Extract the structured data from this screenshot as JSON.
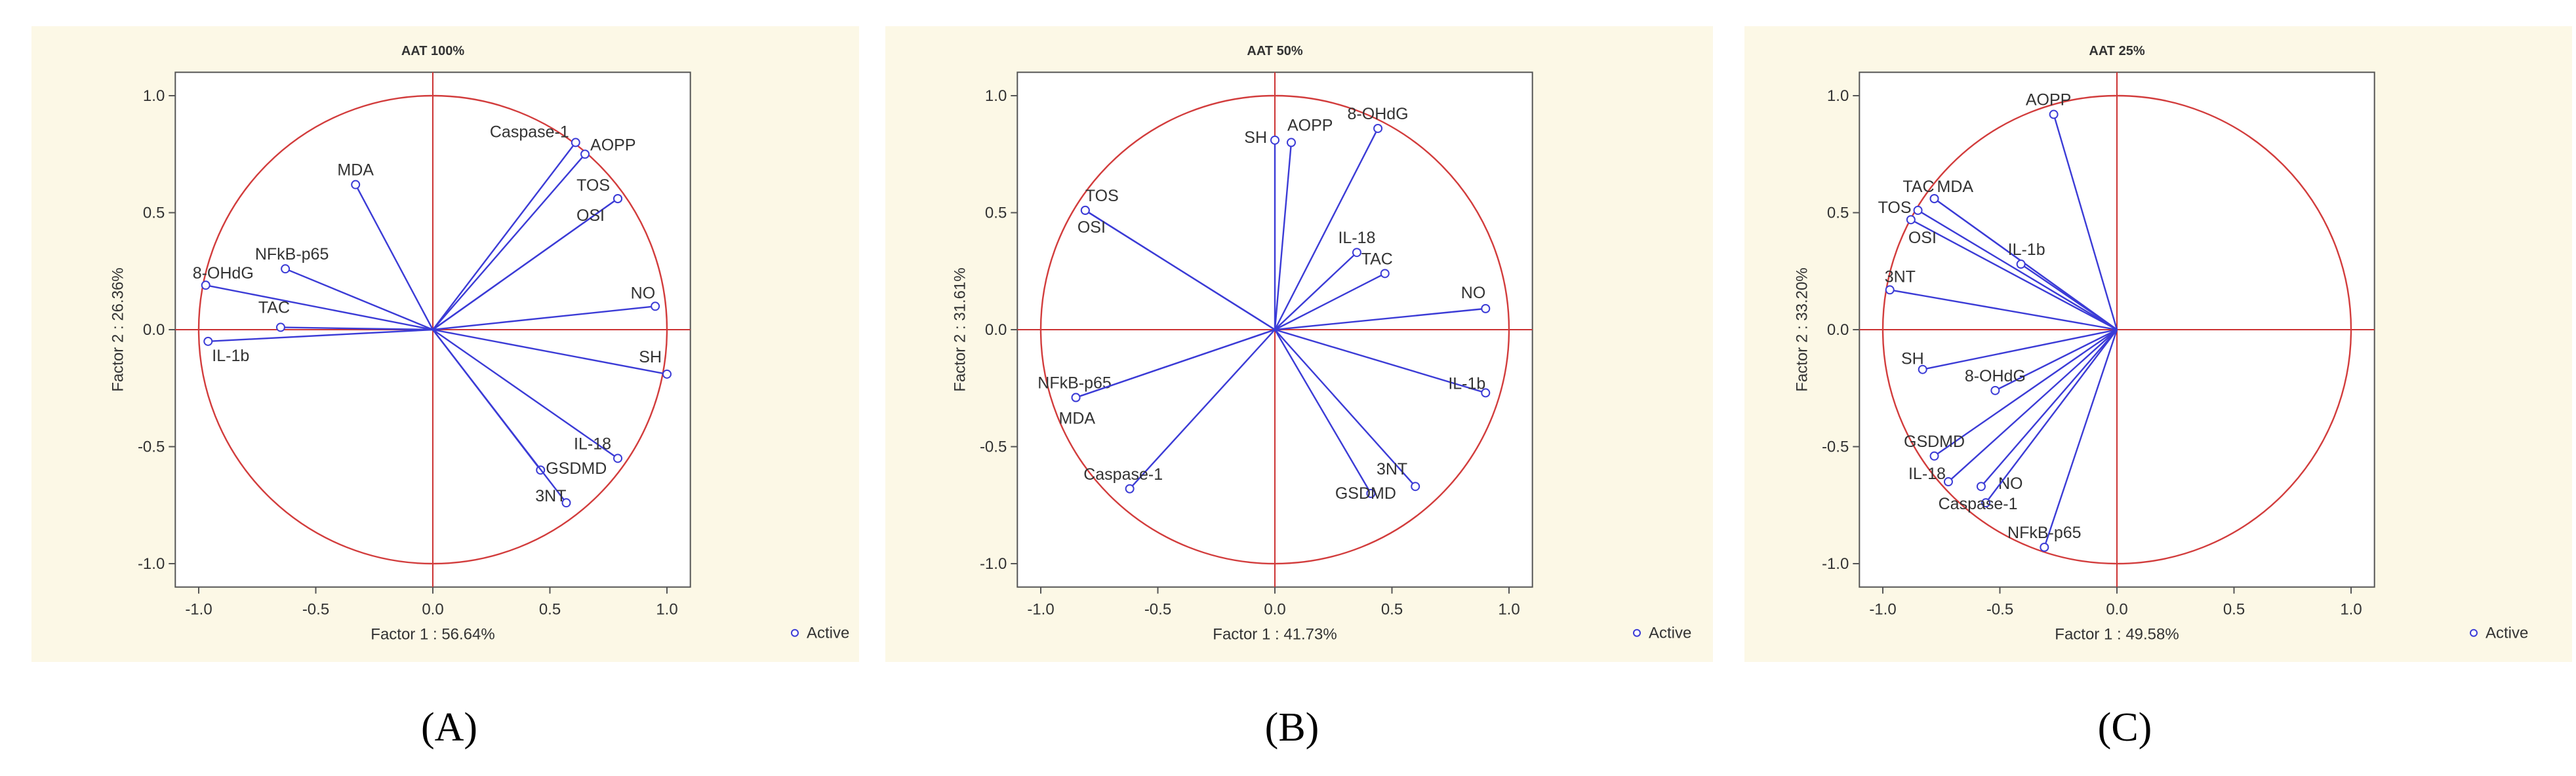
{
  "colors": {
    "vector": "#3b3bd6",
    "circle": "#d23c3c",
    "background": "#fcf8e6",
    "axis": "#cc3333"
  },
  "chart_data": [
    {
      "type": "scatter",
      "subtype": "pca-correlation-circle",
      "title": "AAT 100%",
      "xlabel": "Factor 1 : 56.64%",
      "ylabel": "Factor 2 : 26.36%",
      "xlim": [
        -1.1,
        1.1
      ],
      "ylim": [
        -1.1,
        1.1
      ],
      "xticks": [
        "-1.0",
        "-0.5",
        "0.0",
        "0.5",
        "1.0"
      ],
      "yticks": [
        "1.0",
        "0.5",
        "0.0",
        "-0.5",
        "-1.0"
      ],
      "legend": "Active",
      "legend_position": "right",
      "grid": false,
      "panel_label": "(A)",
      "points": [
        {
          "label": "Caspase-1",
          "x": 0.61,
          "y": 0.8,
          "anchor": "end",
          "dx": -10,
          "dy": -8
        },
        {
          "label": "AOPP",
          "x": 0.65,
          "y": 0.75,
          "anchor": "start",
          "dx": 8,
          "dy": -6
        },
        {
          "label": "TOS",
          "x": 0.79,
          "y": 0.56,
          "anchor": "end",
          "dx": -12,
          "dy": -12
        },
        {
          "label": "OSI",
          "x": 0.79,
          "y": 0.56,
          "anchor": "end",
          "dx": -20,
          "dy": 34
        },
        {
          "label": "MDA",
          "x": -0.33,
          "y": 0.62,
          "anchor": "middle",
          "dx": 0,
          "dy": -14
        },
        {
          "label": "NFkB-p65",
          "x": -0.63,
          "y": 0.26,
          "anchor": "middle",
          "dx": 10,
          "dy": -14
        },
        {
          "label": "8-OHdG",
          "x": -0.97,
          "y": 0.19,
          "anchor": "start",
          "dx": -20,
          "dy": -10
        },
        {
          "label": "NO",
          "x": 0.95,
          "y": 0.1,
          "anchor": "end",
          "dx": 0,
          "dy": -12
        },
        {
          "label": "TAC",
          "x": -0.65,
          "y": 0.01,
          "anchor": "middle",
          "dx": -10,
          "dy": -22
        },
        {
          "label": "IL-1b",
          "x": -0.96,
          "y": -0.05,
          "anchor": "start",
          "dx": 6,
          "dy": 30
        },
        {
          "label": "SH",
          "x": 1.0,
          "y": -0.19,
          "anchor": "end",
          "dx": -8,
          "dy": -18
        },
        {
          "label": "IL-18",
          "x": 0.79,
          "y": -0.55,
          "anchor": "end",
          "dx": -10,
          "dy": -14
        },
        {
          "label": "GSDMD",
          "x": 0.46,
          "y": -0.6,
          "anchor": "start",
          "dx": 8,
          "dy": 6
        },
        {
          "label": "3NT",
          "x": 0.57,
          "y": -0.74,
          "anchor": "end",
          "dx": 0,
          "dy": -2
        }
      ]
    },
    {
      "type": "scatter",
      "subtype": "pca-correlation-circle",
      "title": "AAT 50%",
      "xlabel": "Factor 1 : 41.73%",
      "ylabel": "Factor 2 : 31.61%",
      "xlim": [
        -1.1,
        1.1
      ],
      "ylim": [
        -1.1,
        1.1
      ],
      "xticks": [
        "-1.0",
        "-0.5",
        "0.0",
        "0.5",
        "1.0"
      ],
      "yticks": [
        "1.0",
        "0.5",
        "0.0",
        "-0.5",
        "-1.0"
      ],
      "legend": "Active",
      "legend_position": "right",
      "grid": false,
      "panel_label": "(B)",
      "points": [
        {
          "label": "8-OHdG",
          "x": 0.44,
          "y": 0.86,
          "anchor": "middle",
          "dx": 0,
          "dy": -14
        },
        {
          "label": "SH",
          "x": 0.0,
          "y": 0.81,
          "anchor": "end",
          "dx": -12,
          "dy": 4
        },
        {
          "label": "AOPP",
          "x": 0.07,
          "y": 0.8,
          "anchor": "start",
          "dx": -6,
          "dy": -18
        },
        {
          "label": "TOS",
          "x": -0.81,
          "y": 0.51,
          "anchor": "start",
          "dx": 0,
          "dy": -14
        },
        {
          "label": "OSI",
          "x": -0.81,
          "y": 0.51,
          "anchor": "start",
          "dx": -12,
          "dy": 34
        },
        {
          "label": "IL-18",
          "x": 0.35,
          "y": 0.33,
          "anchor": "middle",
          "dx": 0,
          "dy": -14
        },
        {
          "label": "TAC",
          "x": 0.47,
          "y": 0.24,
          "anchor": "middle",
          "dx": -12,
          "dy": -14
        },
        {
          "label": "NO",
          "x": 0.9,
          "y": 0.09,
          "anchor": "end",
          "dx": 0,
          "dy": -16
        },
        {
          "label": "IL-1b",
          "x": 0.9,
          "y": -0.27,
          "anchor": "end",
          "dx": 0,
          "dy": -6
        },
        {
          "label": "NFkB-p65",
          "x": -0.85,
          "y": -0.29,
          "anchor": "middle",
          "dx": -2,
          "dy": -14
        },
        {
          "label": "MDA",
          "x": -0.85,
          "y": -0.29,
          "anchor": "start",
          "dx": -26,
          "dy": 40
        },
        {
          "label": "3NT",
          "x": 0.6,
          "y": -0.67,
          "anchor": "end",
          "dx": -12,
          "dy": -18
        },
        {
          "label": "GSDMD",
          "x": 0.41,
          "y": -0.7,
          "anchor": "middle",
          "dx": -8,
          "dy": 8
        },
        {
          "label": "Caspase-1",
          "x": -0.62,
          "y": -0.68,
          "anchor": "middle",
          "dx": -10,
          "dy": -14
        }
      ]
    },
    {
      "type": "scatter",
      "subtype": "pca-correlation-circle",
      "title": "AAT 25%",
      "xlabel": "Factor 1 : 49.58%",
      "ylabel": "Factor 2 : 33.20%",
      "xlim": [
        -1.1,
        1.1
      ],
      "ylim": [
        -1.1,
        1.1
      ],
      "xticks": [
        "-1.0",
        "-0.5",
        "0.0",
        "0.5",
        "1.0"
      ],
      "yticks": [
        "1.0",
        "0.5",
        "0.0",
        "-0.5",
        "-1.0"
      ],
      "legend": "Active",
      "legend_position": "right",
      "grid": false,
      "panel_label": "(C)",
      "points": [
        {
          "label": "AOPP",
          "x": -0.27,
          "y": 0.92,
          "anchor": "middle",
          "dx": -8,
          "dy": -14
        },
        {
          "label": "TAC",
          "x": -0.78,
          "y": 0.56,
          "anchor": "end",
          "dx": 0,
          "dy": -10
        },
        {
          "label": "MDA",
          "x": -0.78,
          "y": 0.56,
          "anchor": "start",
          "dx": 4,
          "dy": -10
        },
        {
          "label": "TOS",
          "x": -0.85,
          "y": 0.51,
          "anchor": "end",
          "dx": -10,
          "dy": 4
        },
        {
          "label": "OSI",
          "x": -0.88,
          "y": 0.47,
          "anchor": "start",
          "dx": -4,
          "dy": 36
        },
        {
          "label": "IL-1b",
          "x": -0.41,
          "y": 0.28,
          "anchor": "start",
          "dx": -20,
          "dy": -14
        },
        {
          "label": "3NT",
          "x": -0.97,
          "y": 0.17,
          "anchor": "start",
          "dx": -8,
          "dy": -12
        },
        {
          "label": "SH",
          "x": -0.83,
          "y": -0.17,
          "anchor": "end",
          "dx": 2,
          "dy": -8
        },
        {
          "label": "8-OHdG",
          "x": -0.52,
          "y": -0.26,
          "anchor": "middle",
          "dx": 0,
          "dy": -14
        },
        {
          "label": "GSDMD",
          "x": -0.78,
          "y": -0.54,
          "anchor": "middle",
          "dx": 0,
          "dy": -14
        },
        {
          "label": "IL-18",
          "x": -0.72,
          "y": -0.65,
          "anchor": "end",
          "dx": -4,
          "dy": -4
        },
        {
          "label": "NO",
          "x": -0.58,
          "y": -0.67,
          "anchor": "start",
          "dx": 26,
          "dy": 4
        },
        {
          "label": "Caspase-1",
          "x": -0.56,
          "y": -0.74,
          "anchor": "middle",
          "dx": -12,
          "dy": 10
        },
        {
          "label": "NFkB-p65",
          "x": -0.31,
          "y": -0.93,
          "anchor": "middle",
          "dx": 0,
          "dy": -14
        }
      ]
    }
  ]
}
